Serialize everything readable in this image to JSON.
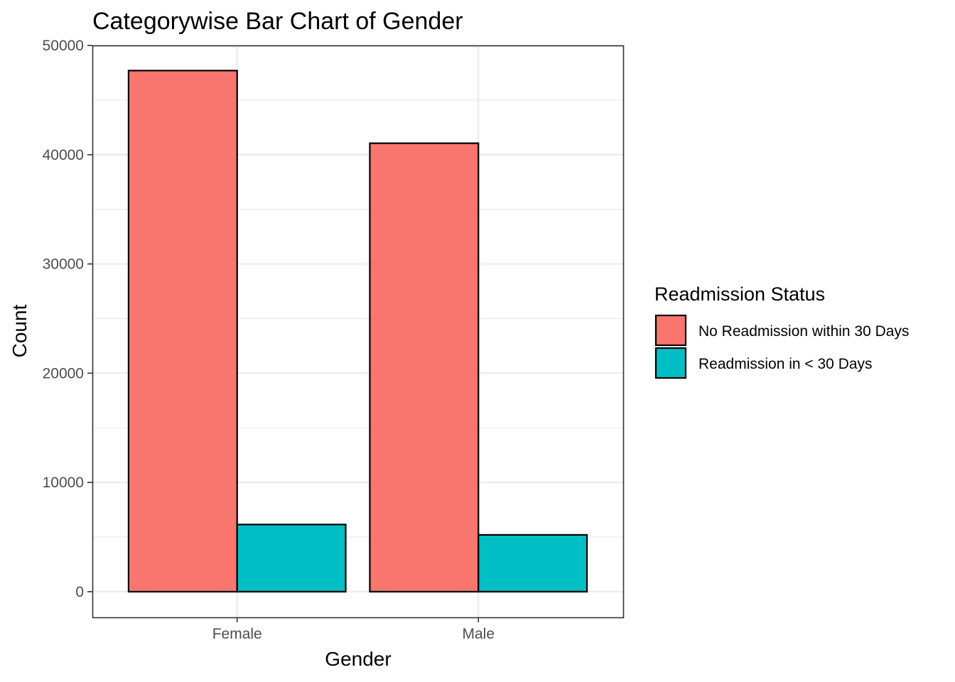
{
  "chart_data": {
    "type": "bar",
    "title": "Categorywise Bar Chart of Gender",
    "xlabel": "Gender",
    "ylabel": "Count",
    "categories": [
      "Female",
      "Male"
    ],
    "series": [
      {
        "name": "No Readmission within 30 Days",
        "color": "#F8766D",
        "values": [
          47700,
          41050
        ]
      },
      {
        "name": "Readmission in < 30 Days",
        "color": "#00BFC4",
        "values": [
          6150,
          5200
        ]
      }
    ],
    "ylim": [
      -2350,
      50000
    ],
    "yticks": [
      0,
      10000,
      20000,
      30000,
      40000,
      50000
    ],
    "ytick_labels": [
      "0",
      "10000",
      "20000",
      "30000",
      "40000",
      "50000"
    ],
    "grid": true,
    "legend": {
      "title": "Readmission Status",
      "position": "right"
    }
  }
}
